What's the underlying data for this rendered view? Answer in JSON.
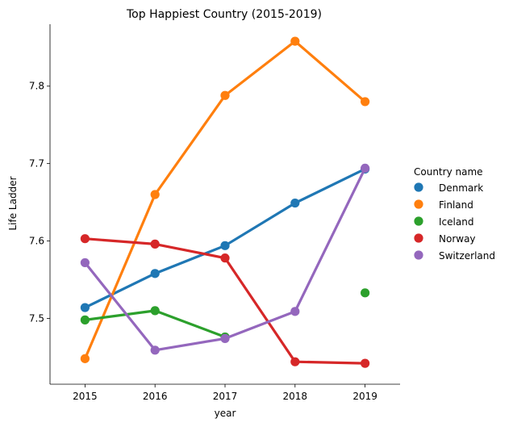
{
  "chart_data": {
    "type": "line",
    "title": "Top Happiest Country (2015-2019)",
    "xlabel": "year",
    "ylabel": "Life Ladder",
    "categories": [
      "2015",
      "2016",
      "2017",
      "2018",
      "2019"
    ],
    "yticks": [
      "7.5",
      "7.6",
      "7.7",
      "7.8"
    ],
    "ylim": [
      7.415,
      7.88
    ],
    "grid": false,
    "legend": {
      "title": "Country name",
      "placement": "right"
    },
    "series": [
      {
        "name": "Denmark",
        "color": "#1f77b4",
        "values": [
          7.514,
          7.558,
          7.594,
          7.649,
          7.693
        ]
      },
      {
        "name": "Finland",
        "color": "#ff7f0e",
        "values": [
          7.448,
          7.66,
          7.788,
          7.858,
          7.78
        ]
      },
      {
        "name": "Iceland",
        "color": "#2ca02c",
        "values": [
          7.498,
          7.51,
          7.476,
          null,
          7.533
        ]
      },
      {
        "name": "Norway",
        "color": "#d62728",
        "values": [
          7.603,
          7.596,
          7.578,
          7.444,
          7.442
        ]
      },
      {
        "name": "Switzerland",
        "color": "#9467bd",
        "values": [
          7.572,
          7.459,
          7.474,
          7.509,
          7.694
        ]
      }
    ]
  }
}
